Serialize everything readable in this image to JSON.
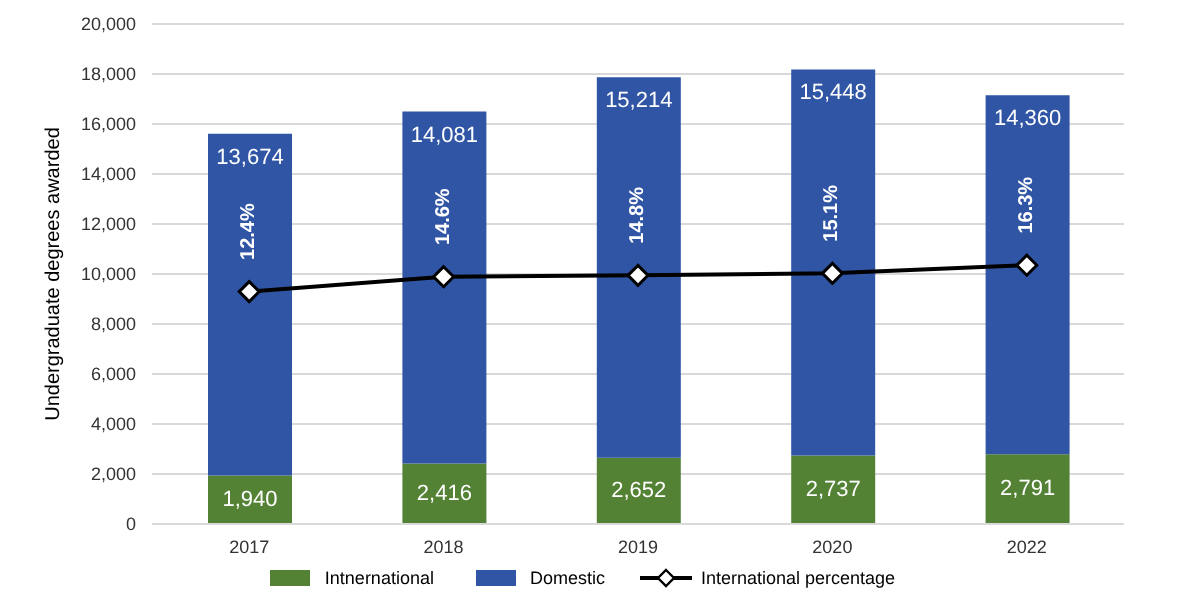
{
  "chart_data": {
    "type": "bar",
    "stacked": true,
    "ylabel": "Undergraduate degrees awarded",
    "categories": [
      "2017",
      "2018",
      "2019",
      "2020",
      "2022"
    ],
    "series": [
      {
        "name": "Intnernational",
        "color": "#548235",
        "values": [
          1940,
          2416,
          2652,
          2737,
          2791
        ],
        "value_labels": [
          "1,940",
          "2,416",
          "2,652",
          "2,737",
          "2,791"
        ]
      },
      {
        "name": "Domestic",
        "color": "#2f55a4",
        "values": [
          13674,
          14081,
          15214,
          15448,
          14360
        ],
        "value_labels": [
          "13,674",
          "14,081",
          "15,214",
          "15,448",
          "14,360"
        ]
      },
      {
        "name": "International percentage",
        "type": "line",
        "axis": "y2",
        "color": "#000000",
        "marker": "diamond",
        "values": [
          12.4,
          14.6,
          14.8,
          15.1,
          16.3
        ],
        "value_labels": [
          "12.4%",
          "14.6%",
          "14.8%",
          "15.1%",
          "16.3%"
        ]
      }
    ],
    "ylim": [
      0,
      20000
    ],
    "yticks": [
      0,
      {
        "value": 2000,
        "label": "2,000"
      },
      {
        "value": 4000,
        "label": "4,000"
      },
      {
        "value": 6000,
        "label": "6,000"
      },
      {
        "value": 8000,
        "label": "8,000"
      },
      {
        "value": 10000,
        "label": "10,000"
      },
      {
        "value": 12000,
        "label": "12,000"
      },
      {
        "value": 14000,
        "label": "14,000"
      },
      {
        "value": 16000,
        "label": "16,000"
      },
      {
        "value": 18000,
        "label": "18,000"
      },
      {
        "value": 20000,
        "label": "20,000"
      }
    ],
    "y2lim": [
      -22,
      52
    ],
    "tick_labels": "xy",
    "grid": "y",
    "legend": "bottom"
  }
}
